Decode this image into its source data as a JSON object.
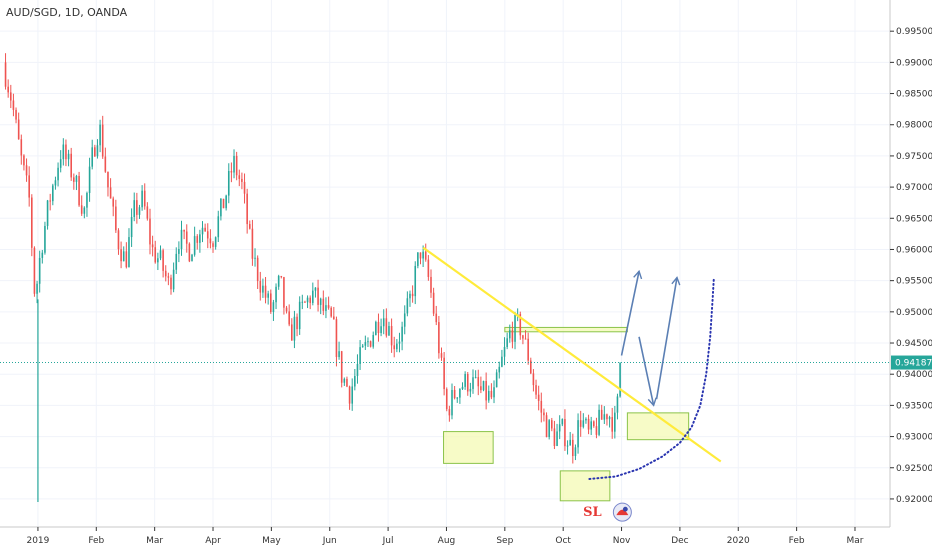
{
  "chart_data": {
    "type": "candlestick",
    "title": "AUD/SGD, 1D, OANDA",
    "ylim": [
      0.9155,
      1.0
    ],
    "y_ticks": [
      0.92,
      0.925,
      0.93,
      0.935,
      0.94,
      0.945,
      0.95,
      0.955,
      0.96,
      0.965,
      0.97,
      0.975,
      0.98,
      0.985,
      0.99,
      0.995
    ],
    "y_tick_labels": [
      "0.92000",
      "0.92500",
      "0.93000",
      "0.93500",
      "0.94000",
      "0.94500",
      "0.95000",
      "0.95500",
      "0.96000",
      "0.96500",
      "0.97000",
      "0.97500",
      "0.98000",
      "0.98500",
      "0.99000",
      "0.99500"
    ],
    "x_ticks": [
      {
        "label": "2019",
        "t": 0.0
      },
      {
        "label": "Feb",
        "t": 1.0
      },
      {
        "label": "Mar",
        "t": 2.0
      },
      {
        "label": "Apr",
        "t": 3.0
      },
      {
        "label": "May",
        "t": 4.0
      },
      {
        "label": "Jun",
        "t": 5.0
      },
      {
        "label": "Jul",
        "t": 6.0
      },
      {
        "label": "Aug",
        "t": 7.0
      },
      {
        "label": "Sep",
        "t": 8.0
      },
      {
        "label": "Oct",
        "t": 9.0
      },
      {
        "label": "Nov",
        "t": 10.0
      },
      {
        "label": "Dec",
        "t": 11.0
      },
      {
        "label": "2020",
        "t": 12.0
      },
      {
        "label": "Feb",
        "t": 13.0
      },
      {
        "label": "Mar",
        "t": 14.0
      }
    ],
    "t_range": [
      -0.65,
      14.6
    ],
    "current_price": 0.94187,
    "current_price_label": "0.94187",
    "price_path": [
      [
        -0.6,
        0.99
      ],
      [
        -0.45,
        0.984
      ],
      [
        -0.3,
        0.975
      ],
      [
        -0.15,
        0.968
      ],
      [
        -0.05,
        0.952
      ],
      [
        0.05,
        0.96
      ],
      [
        0.2,
        0.968
      ],
      [
        0.4,
        0.976
      ],
      [
        0.6,
        0.972
      ],
      [
        0.8,
        0.966
      ],
      [
        0.95,
        0.976
      ],
      [
        1.05,
        0.98
      ],
      [
        1.2,
        0.97
      ],
      [
        1.35,
        0.962
      ],
      [
        1.5,
        0.958
      ],
      [
        1.65,
        0.966
      ],
      [
        1.8,
        0.968
      ],
      [
        1.95,
        0.96
      ],
      [
        2.1,
        0.958
      ],
      [
        2.25,
        0.954
      ],
      [
        2.4,
        0.962
      ],
      [
        2.6,
        0.96
      ],
      [
        2.8,
        0.964
      ],
      [
        3.0,
        0.962
      ],
      [
        3.2,
        0.968
      ],
      [
        3.35,
        0.974
      ],
      [
        3.5,
        0.97
      ],
      [
        3.65,
        0.96
      ],
      [
        3.8,
        0.955
      ],
      [
        4.0,
        0.95
      ],
      [
        4.15,
        0.955
      ],
      [
        4.3,
        0.946
      ],
      [
        4.5,
        0.95
      ],
      [
        4.7,
        0.953
      ],
      [
        4.9,
        0.95
      ],
      [
        5.05,
        0.948
      ],
      [
        5.2,
        0.94
      ],
      [
        5.35,
        0.937
      ],
      [
        5.5,
        0.942
      ],
      [
        5.7,
        0.946
      ],
      [
        5.9,
        0.95
      ],
      [
        6.1,
        0.945
      ],
      [
        6.25,
        0.947
      ],
      [
        6.4,
        0.953
      ],
      [
        6.55,
        0.96
      ],
      [
        6.7,
        0.955
      ],
      [
        6.85,
        0.946
      ],
      [
        7.0,
        0.934
      ],
      [
        7.2,
        0.938
      ],
      [
        7.4,
        0.939
      ],
      [
        7.6,
        0.937
      ],
      [
        7.8,
        0.936
      ],
      [
        7.95,
        0.942
      ],
      [
        8.1,
        0.947
      ],
      [
        8.25,
        0.948
      ],
      [
        8.4,
        0.943
      ],
      [
        8.55,
        0.936
      ],
      [
        8.7,
        0.932
      ],
      [
        8.85,
        0.93
      ],
      [
        9.0,
        0.931
      ],
      [
        9.15,
        0.928
      ],
      [
        9.3,
        0.933
      ],
      [
        9.45,
        0.93
      ],
      [
        9.6,
        0.932
      ],
      [
        9.75,
        0.934
      ],
      [
        9.9,
        0.932
      ],
      [
        10.0,
        0.942
      ]
    ],
    "spike_up": {
      "t": 0.0,
      "low": 0.9195,
      "close": 0.952
    },
    "trendline": [
      {
        "t": 6.6,
        "y": 0.9603
      },
      {
        "t": 11.7,
        "y": 0.926
      }
    ],
    "zones": [
      {
        "t0": 6.95,
        "t1": 7.8,
        "y0": 0.9257,
        "y1": 0.9308
      },
      {
        "t0": 8.0,
        "t1": 10.1,
        "y0": 0.9468,
        "y1": 0.9475
      },
      {
        "t0": 8.95,
        "t1": 9.8,
        "y0": 0.9197,
        "y1": 0.9245
      },
      {
        "t0": 10.1,
        "t1": 11.15,
        "y0": 0.9295,
        "y1": 0.9338
      }
    ],
    "arrows": [
      {
        "t0": 10.0,
        "y0": 0.943,
        "t1": 10.3,
        "y1": 0.9565
      },
      {
        "t0": 10.3,
        "y0": 0.946,
        "t1": 10.55,
        "y1": 0.935
      },
      {
        "t0": 10.6,
        "y0": 0.936,
        "t1": 10.95,
        "y1": 0.9555
      }
    ],
    "dotted_curve": [
      [
        9.45,
        0.9232
      ],
      [
        9.9,
        0.9236
      ],
      [
        10.3,
        0.9248
      ],
      [
        10.7,
        0.9268
      ],
      [
        11.0,
        0.929
      ],
      [
        11.2,
        0.9315
      ],
      [
        11.35,
        0.935
      ],
      [
        11.45,
        0.94
      ],
      [
        11.52,
        0.946
      ],
      [
        11.56,
        0.952
      ],
      [
        11.58,
        0.9553
      ]
    ],
    "stop_loss_label": "SL",
    "stop_loss_anchor": {
      "t": 9.5,
      "y": 0.9182
    },
    "colors": {
      "up": "#26a69a",
      "down": "#ef5350",
      "trendline": "#ffeb3b",
      "zone_fill": "#f4f9b4",
      "zone_stroke": "#8bc34a",
      "arrow": "#5b7fb4",
      "dotted": "#2a35b0",
      "price_line": "#26a69a",
      "price_tag": "#26a69a",
      "sl": "#e53935",
      "grid": "#f0f3fa",
      "axis": "#333333"
    }
  }
}
